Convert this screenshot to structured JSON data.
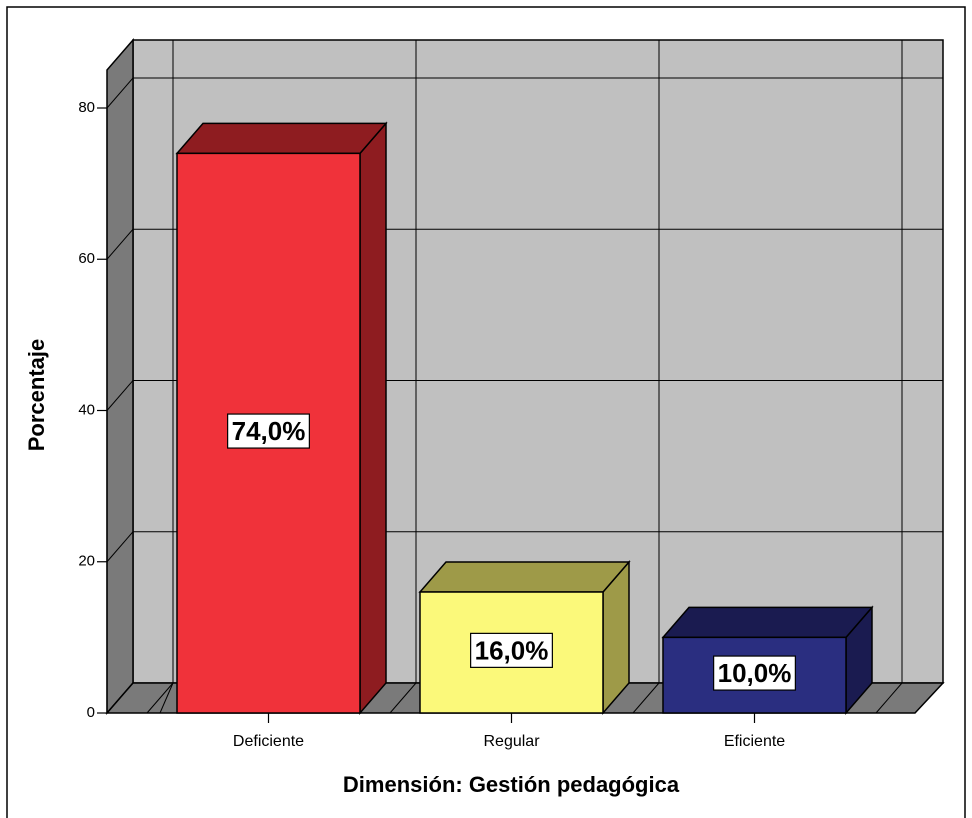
{
  "chart_data": {
    "type": "bar3d",
    "x_label": "Dimensión: Gestión pedagógica",
    "y_label": "Porcentaje",
    "categories": [
      "Deficiente",
      "Regular",
      "Eficiente"
    ],
    "values": [
      74,
      16,
      10
    ],
    "value_labels": [
      "74,0%",
      "16,0%",
      "10,0%"
    ],
    "colors": [
      "#f0323a",
      "#fbf97a",
      "#2a2e80"
    ],
    "side_colors": [
      "#8e1c20",
      "#9e9a48",
      "#1a1b50"
    ],
    "ylim": [
      0,
      80
    ],
    "yticks": [
      0,
      20,
      40,
      60,
      80
    ],
    "grid": true
  }
}
